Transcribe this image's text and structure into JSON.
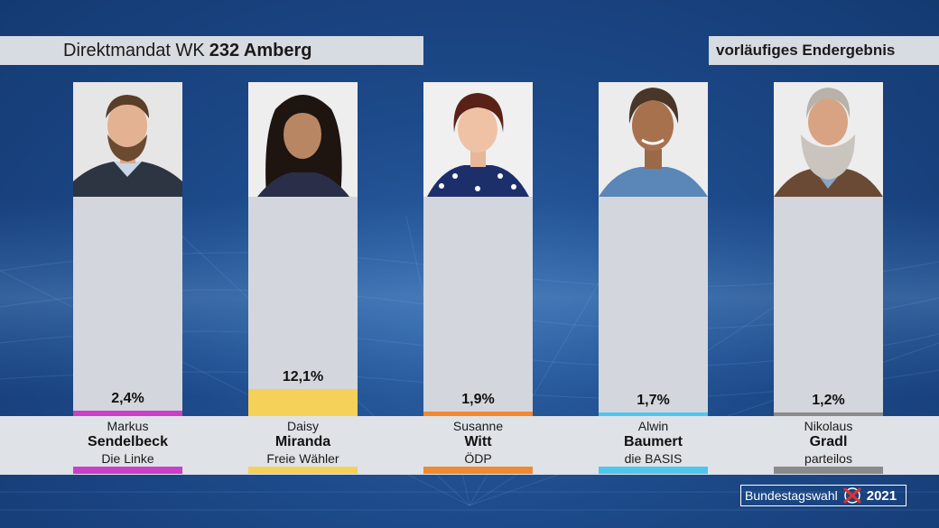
{
  "header": {
    "title_prefix": "Direktmandat WK",
    "title_bold": "232 Amberg",
    "status": "vorläufiges Endergebnis"
  },
  "chart_data": {
    "type": "bar",
    "title": "Direktmandat WK 232 Amberg",
    "categories": [
      "Markus Sendelbeck",
      "Daisy Miranda",
      "Susanne Witt",
      "Alwin Baumert",
      "Nikolaus Gradl"
    ],
    "values": [
      2.4,
      12.1,
      1.9,
      1.7,
      1.2
    ],
    "unit": "%",
    "ylim": [
      0,
      100
    ],
    "value_labels": [
      "2,4%",
      "12,1%",
      "1,9%",
      "1,7%",
      "1,2%"
    ]
  },
  "candidates": [
    {
      "first": "Markus",
      "last": "Sendelbeck",
      "party": "Die Linke",
      "color": "#c93fc8",
      "pct_label": "2,4%"
    },
    {
      "first": "Daisy",
      "last": "Miranda",
      "party": "Freie Wähler",
      "color": "#f5d15a",
      "pct_label": "12,1%"
    },
    {
      "first": "Susanne",
      "last": "Witt",
      "party": "ÖDP",
      "color": "#ef8a32",
      "pct_label": "1,9%"
    },
    {
      "first": "Alwin",
      "last": "Baumert",
      "party": "die BASIS",
      "color": "#4ec7ef",
      "pct_label": "1,7%"
    },
    {
      "first": "Nikolaus",
      "last": "Gradl",
      "party": "parteilos",
      "color": "#8a8a8a",
      "pct_label": "1,2%"
    }
  ],
  "logo": {
    "text": "Bundestagswahl",
    "year": "2021",
    "icon": "ballot-cross-icon"
  }
}
